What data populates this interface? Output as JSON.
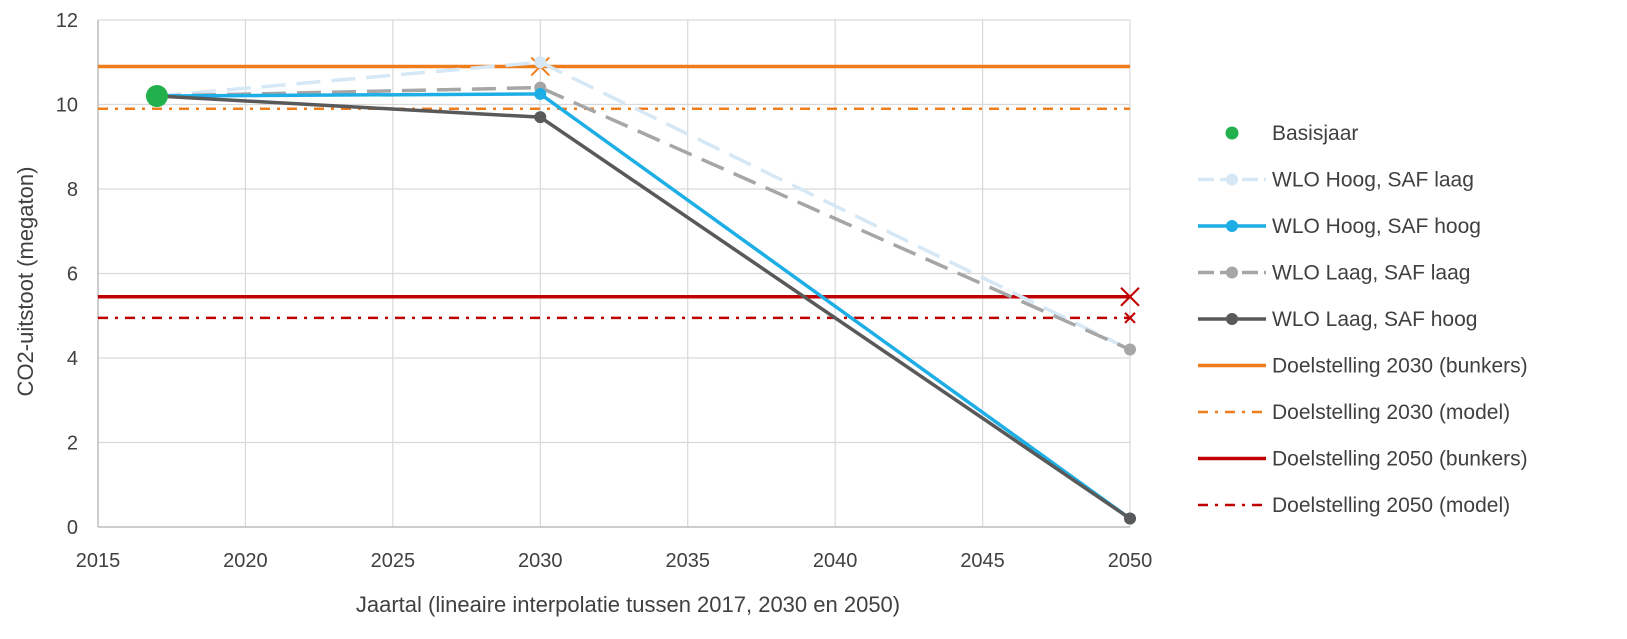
{
  "chart_data": {
    "type": "line",
    "title": "",
    "xlabel": "Jaartal (lineaire interpolatie tussen 2017, 2030 en 2050)",
    "ylabel": "CO2-uitstoot (megaton)",
    "xlim": [
      2015,
      2050
    ],
    "ylim": [
      0,
      12
    ],
    "xticks": [
      2015,
      2020,
      2025,
      2030,
      2035,
      2040,
      2045,
      2050
    ],
    "yticks": [
      0,
      2,
      4,
      6,
      8,
      10,
      12
    ],
    "grid": true,
    "legend_position": "right",
    "series": [
      {
        "name": "Basisjaar",
        "style": "marker",
        "color": "#21b04b",
        "points": [
          [
            2017,
            10.2
          ]
        ]
      },
      {
        "name": "WLO Hoog, SAF laag",
        "style": "dashed",
        "color": "#d6e8f5",
        "points": [
          [
            2017,
            10.2
          ],
          [
            2030,
            11.0
          ],
          [
            2050,
            4.2
          ]
        ]
      },
      {
        "name": "WLO Hoog, SAF hoog",
        "style": "solid",
        "color": "#1eaee6",
        "points": [
          [
            2017,
            10.2
          ],
          [
            2030,
            10.25
          ],
          [
            2050,
            0.2
          ]
        ]
      },
      {
        "name": "WLO Laag, SAF laag",
        "style": "dashed",
        "color": "#a6a6a6",
        "points": [
          [
            2017,
            10.2
          ],
          [
            2030,
            10.4
          ],
          [
            2050,
            4.2
          ]
        ]
      },
      {
        "name": "WLO Laag, SAF hoog",
        "style": "solid",
        "color": "#595959",
        "points": [
          [
            2017,
            10.2
          ],
          [
            2030,
            9.7
          ],
          [
            2050,
            0.2
          ]
        ]
      },
      {
        "name": "Doelstelling 2030 (bunkers)",
        "style": "hline",
        "color": "#f07d1c",
        "value": 10.9,
        "marker_x": 2030
      },
      {
        "name": "Doelstelling 2030 (model)",
        "style": "dashdot",
        "color": "#f07d1c",
        "value": 9.9
      },
      {
        "name": "Doelstelling 2050 (bunkers)",
        "style": "hline",
        "color": "#c00000",
        "value": 5.45,
        "marker_x": 2050
      },
      {
        "name": "Doelstelling 2050 (model)",
        "style": "dashdot",
        "color": "#c00000",
        "value": 4.95,
        "marker_x": 2050
      }
    ]
  }
}
